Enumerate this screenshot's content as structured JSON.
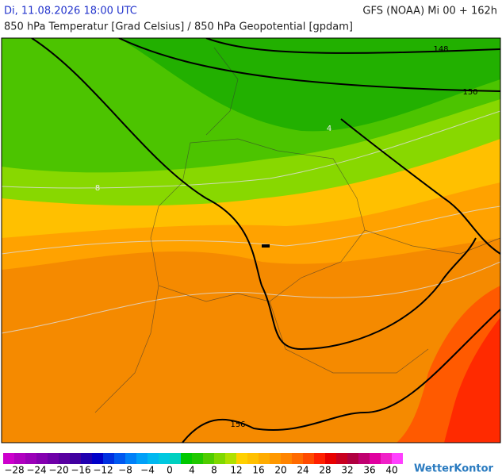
{
  "header": {
    "date": "Di, 11.08.2026 18:00 UTC",
    "model": "GFS (NOAA) Mi 00 + 162h",
    "subtitle": "850 hPa Temperatur [Grad Celsius] / 850 hPa Geopotential [gpdam]"
  },
  "map": {
    "contour_labels": [
      "148",
      "150",
      "156"
    ],
    "isotherm_labels": [
      "4",
      "8"
    ]
  },
  "legend": {
    "labels": [
      "−28",
      "−24",
      "−20",
      "−16",
      "−12",
      "−8",
      "−4",
      "0",
      "4",
      "8",
      "12",
      "16",
      "20",
      "24",
      "28",
      "32",
      "36",
      "40"
    ]
  },
  "logo": "WetterKontor"
}
